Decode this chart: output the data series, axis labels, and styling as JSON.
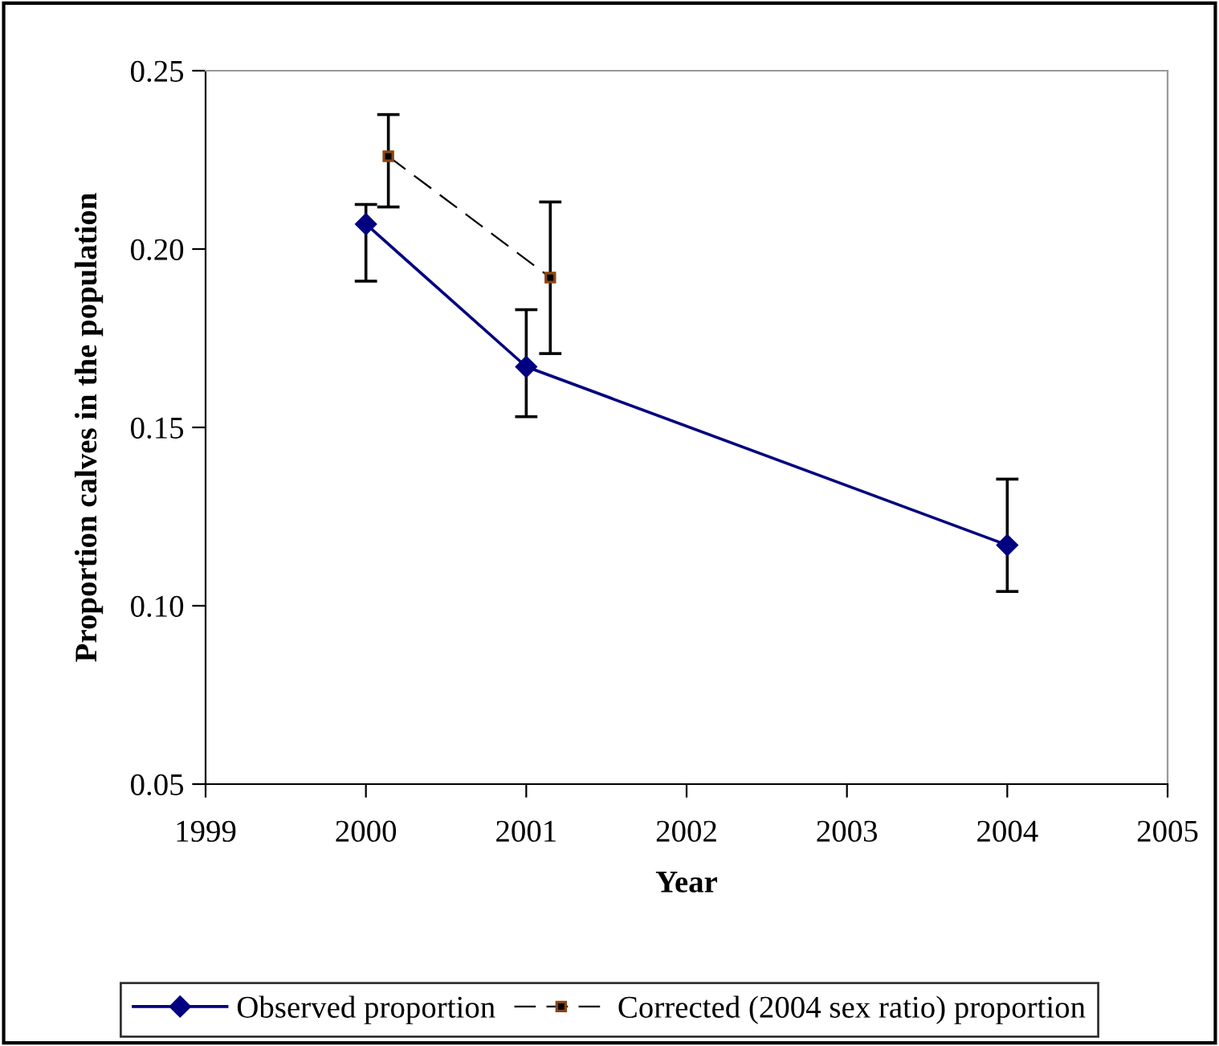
{
  "chart_data": {
    "type": "line",
    "xlabel": "Year",
    "ylabel": "Proportion calves in the population",
    "xlim": [
      1999,
      2005
    ],
    "xticks": [
      1999,
      2000,
      2001,
      2002,
      2003,
      2004,
      2005
    ],
    "ylim": [
      0.05,
      0.25
    ],
    "yticks": [
      {
        "value": 0.05,
        "label": "0.05"
      },
      {
        "value": 0.1,
        "label": "0.10"
      },
      {
        "value": 0.15,
        "label": "0.15"
      },
      {
        "value": 0.2,
        "label": "0.20"
      },
      {
        "value": 0.25,
        "label": "0.25"
      }
    ],
    "grid": false,
    "legend": "bottom",
    "series": [
      {
        "name": "Observed proportion",
        "color": "#000080",
        "marker": "diamond",
        "line_style": "solid",
        "x": [
          2000,
          2001,
          2004
        ],
        "values": [
          0.207,
          0.167,
          0.117
        ],
        "errors": [
          [
            0.191,
            0.2125
          ],
          [
            0.153,
            0.183
          ],
          [
            0.104,
            0.1355
          ]
        ]
      },
      {
        "name": "Corrected (2004 sex ratio) proportion",
        "color": "#000000",
        "marker": "square",
        "line_style": "dashed",
        "x": [
          2000.14,
          2001.15
        ],
        "values": [
          0.226,
          0.192
        ],
        "errors": [
          [
            0.2118,
            0.2377
          ],
          [
            0.1707,
            0.2132
          ]
        ]
      }
    ]
  }
}
